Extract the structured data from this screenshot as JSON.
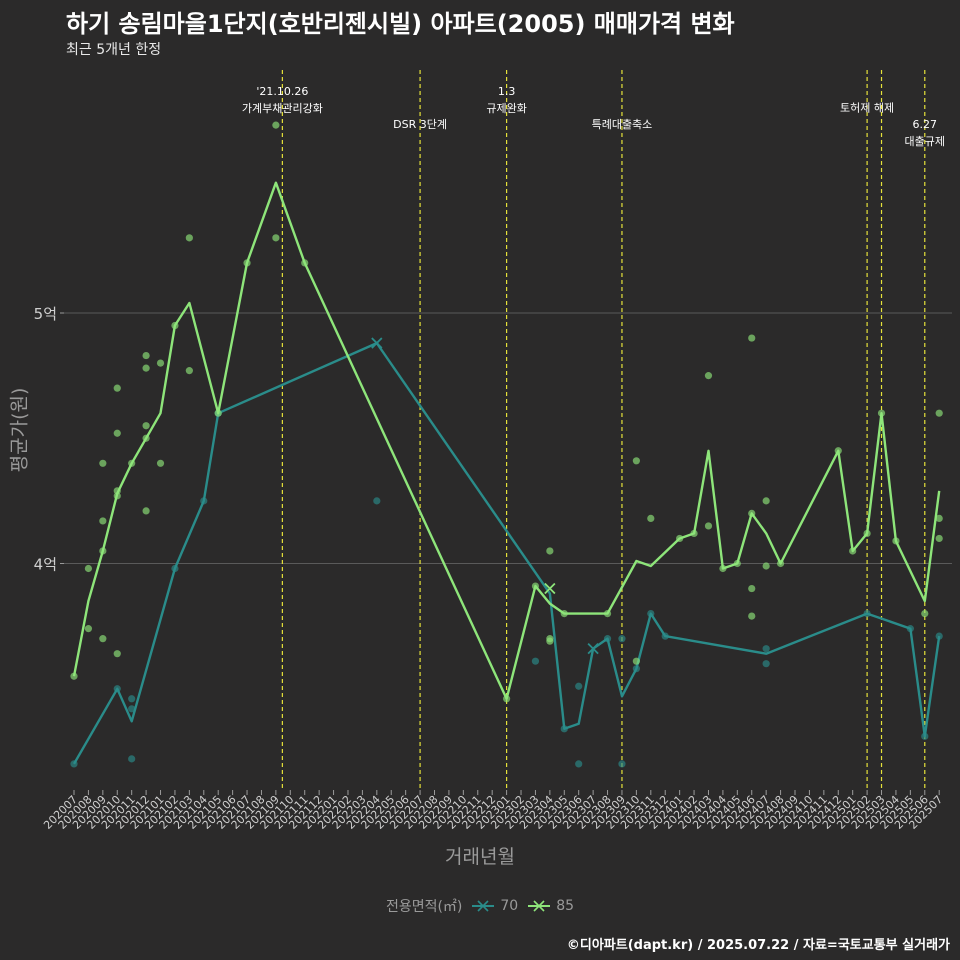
{
  "title": "하기 송림마을1단지(호반리젠시빌) 아파트(2005) 매매가격 변화",
  "subtitle": "최근 5개년 한정",
  "credit": "©디아파트(dapt.kr) / 2025.07.22 / 자료=국토교통부 실거래가",
  "colors": {
    "background": "#2b2a2a",
    "s70": "#2a8c8a",
    "s85": "#8ee57a",
    "vline": "#e6e23a",
    "grid": "#5a5a5a"
  },
  "chart_data": {
    "type": "line",
    "xlabel": "거래년월",
    "ylabel": "평균가(원)",
    "ylim": [
      3.08,
      5.88
    ],
    "yticks": [
      {
        "value": 4,
        "label": "4억"
      },
      {
        "value": 5,
        "label": "5억"
      }
    ],
    "grid": true,
    "legend": {
      "title": "전용면적(㎡)",
      "position": "bottom"
    },
    "months": [
      "202007",
      "202008",
      "202009",
      "202010",
      "202011",
      "202012",
      "202101",
      "202102",
      "202103",
      "202104",
      "202105",
      "202106",
      "202107",
      "202108",
      "202109",
      "202110",
      "202111",
      "202112",
      "202201",
      "202202",
      "202203",
      "202204",
      "202205",
      "202206",
      "202207",
      "202208",
      "202209",
      "202210",
      "202211",
      "202212",
      "202301",
      "202302",
      "202303",
      "202304",
      "202305",
      "202306",
      "202307",
      "202308",
      "202309",
      "202310",
      "202311",
      "202312",
      "202401",
      "202402",
      "202403",
      "202404",
      "202405",
      "202406",
      "202407",
      "202408",
      "202409",
      "202410",
      "202411",
      "202412",
      "202501",
      "202502",
      "202503",
      "202504",
      "202505",
      "202506",
      "202507"
    ],
    "series": [
      {
        "name": "70",
        "line": [
          [
            "202007",
            3.2
          ],
          [
            "202010",
            3.5
          ],
          [
            "202011",
            3.37
          ],
          [
            "202102",
            3.98
          ],
          [
            "202104",
            4.25
          ],
          [
            "202105",
            4.6
          ],
          [
            "202204",
            4.88
          ],
          [
            "202304",
            3.88
          ],
          [
            "202305",
            3.34
          ],
          [
            "202306",
            3.36
          ],
          [
            "202307",
            3.66
          ],
          [
            "202308",
            3.7
          ],
          [
            "202309",
            3.47
          ],
          [
            "202310",
            3.58
          ],
          [
            "202311",
            3.8
          ],
          [
            "202312",
            3.71
          ],
          [
            "202407",
            3.64
          ],
          [
            "202502",
            3.8
          ],
          [
            "202505",
            3.74
          ],
          [
            "202506",
            3.31
          ],
          [
            "202507",
            3.71
          ]
        ],
        "points": [
          [
            "202007",
            3.2
          ],
          [
            "202010",
            3.5
          ],
          [
            "202011",
            3.42
          ],
          [
            "202011",
            3.46
          ],
          [
            "202011",
            3.22
          ],
          [
            "202102",
            3.98
          ],
          [
            "202104",
            4.25
          ],
          [
            "202105",
            4.6
          ],
          [
            "202204",
            4.25
          ],
          [
            "202303",
            3.61
          ],
          [
            "202305",
            3.34
          ],
          [
            "202306",
            3.51
          ],
          [
            "202306",
            3.2
          ],
          [
            "202308",
            3.7
          ],
          [
            "202309",
            3.7
          ],
          [
            "202309",
            3.2
          ],
          [
            "202310",
            3.58
          ],
          [
            "202311",
            3.8
          ],
          [
            "202312",
            3.71
          ],
          [
            "202407",
            3.66
          ],
          [
            "202407",
            3.6
          ],
          [
            "202502",
            3.8
          ],
          [
            "202505",
            3.74
          ],
          [
            "202506",
            3.31
          ],
          [
            "202507",
            3.71
          ]
        ],
        "crosses": [
          [
            "202204",
            4.88
          ],
          [
            "202307",
            3.66
          ]
        ]
      },
      {
        "name": "85",
        "line": [
          [
            "202007",
            3.55
          ],
          [
            "202008",
            3.85
          ],
          [
            "202009",
            4.05
          ],
          [
            "202010",
            4.28
          ],
          [
            "202011",
            4.4
          ],
          [
            "202012",
            4.5
          ],
          [
            "202101",
            4.6
          ],
          [
            "202102",
            4.95
          ],
          [
            "202103",
            5.04
          ],
          [
            "202105",
            4.6
          ],
          [
            "202107",
            5.2
          ],
          [
            "202109",
            5.52
          ],
          [
            "202111",
            5.2
          ],
          [
            "202301",
            3.46
          ],
          [
            "202303",
            3.91
          ],
          [
            "202304",
            3.84
          ],
          [
            "202305",
            3.8
          ],
          [
            "202308",
            3.8
          ],
          [
            "202310",
            4.01
          ],
          [
            "202311",
            3.99
          ],
          [
            "202401",
            4.1
          ],
          [
            "202402",
            4.12
          ],
          [
            "202403",
            4.45
          ],
          [
            "202404",
            3.98
          ],
          [
            "202405",
            4.0
          ],
          [
            "202406",
            4.2
          ],
          [
            "202407",
            4.12
          ],
          [
            "202408",
            4.0
          ],
          [
            "202412",
            4.45
          ],
          [
            "202501",
            4.05
          ],
          [
            "202502",
            4.12
          ],
          [
            "202503",
            4.6
          ],
          [
            "202504",
            4.09
          ],
          [
            "202506",
            3.85
          ],
          [
            "202507",
            4.29
          ]
        ],
        "points": [
          [
            "202007",
            3.55
          ],
          [
            "202008",
            3.98
          ],
          [
            "202008",
            3.74
          ],
          [
            "202009",
            4.4
          ],
          [
            "202009",
            4.17
          ],
          [
            "202009",
            4.05
          ],
          [
            "202009",
            3.7
          ],
          [
            "202010",
            4.7
          ],
          [
            "202010",
            4.52
          ],
          [
            "202010",
            4.29
          ],
          [
            "202010",
            4.27
          ],
          [
            "202010",
            3.64
          ],
          [
            "202011",
            4.4
          ],
          [
            "202012",
            4.83
          ],
          [
            "202012",
            4.78
          ],
          [
            "202012",
            4.55
          ],
          [
            "202012",
            4.5
          ],
          [
            "202012",
            4.21
          ],
          [
            "202101",
            4.8
          ],
          [
            "202101",
            4.4
          ],
          [
            "202102",
            4.95
          ],
          [
            "202103",
            5.3
          ],
          [
            "202103",
            4.77
          ],
          [
            "202105",
            4.6
          ],
          [
            "202107",
            5.2
          ],
          [
            "202109",
            5.75
          ],
          [
            "202109",
            5.3
          ],
          [
            "202111",
            5.2
          ],
          [
            "202301",
            3.46
          ],
          [
            "202303",
            3.91
          ],
          [
            "202304",
            4.05
          ],
          [
            "202304",
            3.7
          ],
          [
            "202304",
            3.69
          ],
          [
            "202305",
            3.8
          ],
          [
            "202308",
            3.8
          ],
          [
            "202310",
            4.41
          ],
          [
            "202310",
            3.61
          ],
          [
            "202311",
            4.18
          ],
          [
            "202401",
            4.1
          ],
          [
            "202402",
            4.12
          ],
          [
            "202403",
            4.75
          ],
          [
            "202403",
            4.15
          ],
          [
            "202404",
            3.98
          ],
          [
            "202405",
            4.0
          ],
          [
            "202406",
            4.9
          ],
          [
            "202406",
            4.2
          ],
          [
            "202406",
            3.9
          ],
          [
            "202406",
            3.79
          ],
          [
            "202407",
            4.25
          ],
          [
            "202407",
            3.99
          ],
          [
            "202408",
            4.0
          ],
          [
            "202412",
            4.45
          ],
          [
            "202501",
            4.05
          ],
          [
            "202502",
            4.12
          ],
          [
            "202503",
            4.6
          ],
          [
            "202504",
            4.09
          ],
          [
            "202506",
            3.8
          ],
          [
            "202507",
            4.6
          ],
          [
            "202507",
            4.18
          ],
          [
            "202507",
            4.1
          ]
        ],
        "crosses": [
          [
            "202304",
            3.9
          ]
        ]
      }
    ],
    "events": [
      {
        "month": "202110",
        "offset": -0.55,
        "lines": [
          "'21.10.26",
          "가계부채관리강화"
        ],
        "row": 0
      },
      {
        "month": "202207",
        "offset": 0,
        "lines": [
          "DSR 3단계"
        ],
        "row": 1
      },
      {
        "month": "202301",
        "offset": 0,
        "lines": [
          "1.3",
          "규제완화"
        ],
        "row": 0
      },
      {
        "month": "202309",
        "offset": 0,
        "lines": [
          "특례대출축소"
        ],
        "row": 1
      },
      {
        "month": "202502",
        "offset": 0,
        "lines": [
          "토허제 해제"
        ],
        "row": 0.5
      },
      {
        "month": "202503",
        "offset": 0,
        "lines": [],
        "row": 0
      },
      {
        "month": "202506",
        "offset": 0,
        "lines": [
          "6.27",
          "대출규제"
        ],
        "row": 1
      }
    ]
  }
}
